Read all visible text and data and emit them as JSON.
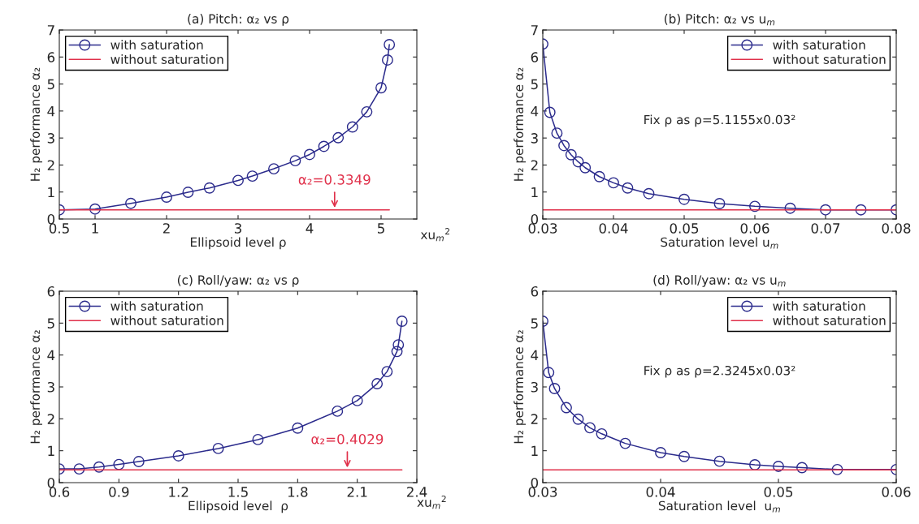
{
  "chart_data": [
    {
      "type": "line",
      "title": "(a) Pitch: α₂ vs ρ",
      "xlabel": "Ellipsoid level ρ",
      "ylabel": "H₂ performance α₂",
      "xlim": [
        0.5,
        5.5
      ],
      "xticks": [
        0.5,
        1,
        2,
        3,
        4,
        5
      ],
      "ylim": [
        0,
        7
      ],
      "yticks": [
        0,
        1,
        2,
        3,
        4,
        5,
        6,
        7
      ],
      "grid": false,
      "legend": "top left",
      "series": [
        {
          "name": "with saturation",
          "color": "#2b2b8c",
          "marker": "circle",
          "x": [
            0.5,
            1,
            1.5,
            2,
            2.3,
            2.6,
            3,
            3.2,
            3.5,
            3.8,
            4,
            4.2,
            4.4,
            4.6,
            4.8,
            5,
            5.09,
            5.1155
          ],
          "values": [
            0.34,
            0.37,
            0.58,
            0.81,
            0.99,
            1.15,
            1.43,
            1.59,
            1.86,
            2.16,
            2.39,
            2.69,
            3.01,
            3.41,
            3.97,
            4.86,
            5.89,
            6.46
          ]
        },
        {
          "name": "without saturation",
          "color": "#e0304a",
          "marker": "none",
          "x": [
            0.5,
            5.1155
          ],
          "values": [
            0.3349,
            0.3349
          ]
        }
      ],
      "annotations": [
        {
          "text": "α₂=0.3349",
          "x": 4.35,
          "y": 0.3349
        },
        "xu$_{m}$$^{2}$"
      ]
    },
    {
      "type": "line",
      "title": "(b) Pitch: α₂ vs u$_{m}$",
      "xlabel": "Saturation level u$_{m}$",
      "ylabel": "H₂ performance α₂",
      "xlim": [
        0.03,
        0.08
      ],
      "xticks": [
        0.03,
        0.04,
        0.05,
        0.06,
        0.07,
        0.08
      ],
      "ylim": [
        0,
        7
      ],
      "yticks": [
        0,
        1,
        2,
        3,
        4,
        5,
        6,
        7
      ],
      "grid": false,
      "legend": "top right",
      "series": [
        {
          "name": "with saturation",
          "color": "#2b2b8c",
          "marker": "circle",
          "x": [
            0.03,
            0.031,
            0.032,
            0.033,
            0.034,
            0.035,
            0.036,
            0.038,
            0.04,
            0.042,
            0.045,
            0.05,
            0.055,
            0.06,
            0.065,
            0.07,
            0.075,
            0.08
          ],
          "values": [
            6.48,
            3.95,
            3.18,
            2.72,
            2.38,
            2.12,
            1.9,
            1.57,
            1.34,
            1.15,
            0.94,
            0.73,
            0.57,
            0.47,
            0.4,
            0.34,
            0.34,
            0.34
          ]
        },
        {
          "name": "without saturation",
          "color": "#e0304a",
          "marker": "none",
          "x": [
            0.03,
            0.08
          ],
          "values": [
            0.3349,
            0.3349
          ]
        }
      ],
      "annotations": [
        "Fix ρ as ρ=5.1155x0.03²"
      ]
    },
    {
      "type": "line",
      "title": "(c) Roll/yaw: α₂ vs ρ",
      "xlabel": "Ellipsoid level  ρ",
      "ylabel": "H₂ performance α₂",
      "xlim": [
        0.6,
        2.4
      ],
      "xticks": [
        0.6,
        0.9,
        1.2,
        1.5,
        1.8,
        2.1,
        2.4
      ],
      "ylim": [
        0,
        6
      ],
      "yticks": [
        0,
        1,
        2,
        3,
        4,
        5,
        6
      ],
      "grid": false,
      "legend": "top left",
      "series": [
        {
          "name": "with saturation",
          "color": "#2b2b8c",
          "marker": "circle",
          "x": [
            0.6,
            0.7,
            0.8,
            0.9,
            1.0,
            1.2,
            1.4,
            1.6,
            1.8,
            2.0,
            2.1,
            2.2,
            2.25,
            2.3,
            2.307,
            2.325
          ],
          "values": [
            0.43,
            0.43,
            0.49,
            0.57,
            0.66,
            0.84,
            1.07,
            1.35,
            1.71,
            2.24,
            2.57,
            3.1,
            3.48,
            4.11,
            4.32,
            5.06
          ]
        },
        {
          "name": "without saturation",
          "color": "#e0304a",
          "marker": "none",
          "x": [
            0.6,
            2.325
          ],
          "values": [
            0.4029,
            0.4029
          ]
        }
      ],
      "annotations": [
        {
          "text": "α₂=0.4029",
          "x": 2.05,
          "y": 0.4029
        },
        "xu$_{m}$$^{2}$"
      ]
    },
    {
      "type": "line",
      "title": "(d) Roll/yaw: α₂ vs u$_{m}$",
      "xlabel": "Saturation level  u$_{m}$",
      "ylabel": "H₂ performance α₂",
      "xlim": [
        0.03,
        0.06
      ],
      "xticks": [
        0.03,
        0.04,
        0.05,
        0.06
      ],
      "ylim": [
        0,
        6
      ],
      "yticks": [
        0,
        1,
        2,
        3,
        4,
        5,
        6
      ],
      "grid": false,
      "legend": "top right",
      "series": [
        {
          "name": "with saturation",
          "color": "#2b2b8c",
          "marker": "circle",
          "x": [
            0.03,
            0.0305,
            0.031,
            0.032,
            0.033,
            0.034,
            0.035,
            0.037,
            0.04,
            0.042,
            0.045,
            0.048,
            0.05,
            0.052,
            0.055,
            0.06
          ],
          "values": [
            5.06,
            3.45,
            2.95,
            2.35,
            1.99,
            1.72,
            1.53,
            1.23,
            0.94,
            0.82,
            0.67,
            0.56,
            0.51,
            0.47,
            0.41,
            0.41
          ]
        },
        {
          "name": "without saturation",
          "color": "#e0304a",
          "marker": "none",
          "x": [
            0.03,
            0.06
          ],
          "values": [
            0.4029,
            0.4029
          ]
        }
      ],
      "annotations": [
        "Fix ρ as ρ=2.3245x0.03²"
      ]
    }
  ]
}
